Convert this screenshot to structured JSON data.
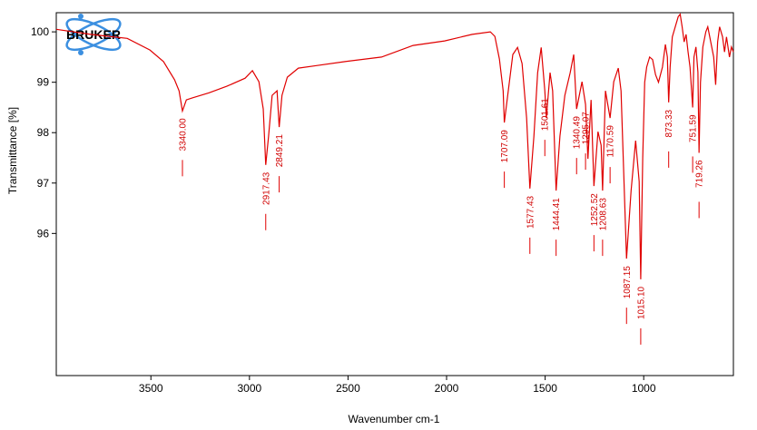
{
  "logo": "BRUKER",
  "chart_data": {
    "type": "line",
    "xlabel": "Wavenumber cm-1",
    "ylabel": "Transmittance [%]",
    "xlim": [
      3980,
      545
    ],
    "ylim": [
      93.18,
      100.38
    ],
    "xticks": [
      3500,
      3000,
      2500,
      2000,
      1500,
      1000
    ],
    "yticks": [
      96,
      97,
      98,
      99,
      100
    ],
    "color": "#e00000",
    "x": [
      3980,
      3805,
      3620,
      3505,
      3436,
      3380,
      3357,
      3340,
      3320,
      3290,
      3205,
      3115,
      3022,
      2985,
      2952,
      2930,
      2917.43,
      2903,
      2885,
      2860,
      2849.21,
      2835,
      2808,
      2752,
      2660,
      2515,
      2330,
      2170,
      2010,
      1870,
      1778,
      1755,
      1732,
      1713,
      1707.09,
      1687,
      1664,
      1640,
      1617,
      1594,
      1577.43,
      1557,
      1538,
      1520,
      1501.61,
      1494,
      1475,
      1462,
      1444.41,
      1425,
      1400,
      1373,
      1355,
      1340.49,
      1313,
      1295.07,
      1283,
      1267,
      1252.52,
      1232,
      1216,
      1208.63,
      1194,
      1170.59,
      1152,
      1129,
      1115,
      1087.15,
      1064,
      1041,
      1023,
      1015.1,
      1005,
      995,
      985,
      970,
      955,
      940,
      925,
      905,
      890,
      880,
      873.33,
      866,
      855,
      840,
      825,
      815,
      805,
      795,
      785,
      775,
      765,
      751.59,
      745,
      735,
      725,
      719.26,
      712,
      700,
      685,
      675,
      665,
      655,
      645,
      635,
      625,
      615,
      600,
      590,
      580,
      565,
      555,
      545
    ],
    "values": [
      100.05,
      99.95,
      99.87,
      99.64,
      99.41,
      99.05,
      98.83,
      98.43,
      98.65,
      98.69,
      98.79,
      98.92,
      99.08,
      99.23,
      99.01,
      98.47,
      97.36,
      97.93,
      98.74,
      98.83,
      98.11,
      98.74,
      99.1,
      99.28,
      99.33,
      99.41,
      99.5,
      99.73,
      99.82,
      99.95,
      100.0,
      99.91,
      99.46,
      98.83,
      98.2,
      98.83,
      99.55,
      99.69,
      99.37,
      98.29,
      96.89,
      97.93,
      99.19,
      99.69,
      98.83,
      98.29,
      99.19,
      98.83,
      96.85,
      97.93,
      98.74,
      99.19,
      99.55,
      98.47,
      99.01,
      98.56,
      97.48,
      98.65,
      96.94,
      98.02,
      97.75,
      96.85,
      98.83,
      98.29,
      99.01,
      99.28,
      98.83,
      95.5,
      96.85,
      97.84,
      97.03,
      95.09,
      97.5,
      99.0,
      99.3,
      99.5,
      99.45,
      99.15,
      99.0,
      99.3,
      99.75,
      99.5,
      98.6,
      99.3,
      99.9,
      100.1,
      100.3,
      100.35,
      100.1,
      99.8,
      99.95,
      99.6,
      99.3,
      98.5,
      99.5,
      99.7,
      99.2,
      97.6,
      99.0,
      99.7,
      100.0,
      100.1,
      99.9,
      99.7,
      99.5,
      98.95,
      99.8,
      100.1,
      99.9,
      99.6,
      99.9,
      99.5,
      99.7,
      99.6
    ],
    "peaks": [
      {
        "value": 3340,
        "label": "3340.00"
      },
      {
        "value": 2917.43,
        "label": "2917.43"
      },
      {
        "value": 2849.21,
        "label": "2849.21"
      },
      {
        "value": 1707.09,
        "label": "1707.09"
      },
      {
        "value": 1577.43,
        "label": "1577.43"
      },
      {
        "value": 1501.61,
        "label": "1501.61"
      },
      {
        "value": 1444.41,
        "label": "1444.41"
      },
      {
        "value": 1340.49,
        "label": "1340.49"
      },
      {
        "value": 1295.07,
        "label": "1295.07"
      },
      {
        "value": 1252.52,
        "label": "1252.52"
      },
      {
        "value": 1208.63,
        "label": "1208.63"
      },
      {
        "value": 1170.59,
        "label": "1170.59"
      },
      {
        "value": 1087.15,
        "label": "1087.15"
      },
      {
        "value": 1015.1,
        "label": "1015.10"
      },
      {
        "value": 873.33,
        "label": "873.33"
      },
      {
        "value": 751.59,
        "label": "751.59"
      },
      {
        "value": 719.26,
        "label": "719.26"
      }
    ]
  }
}
